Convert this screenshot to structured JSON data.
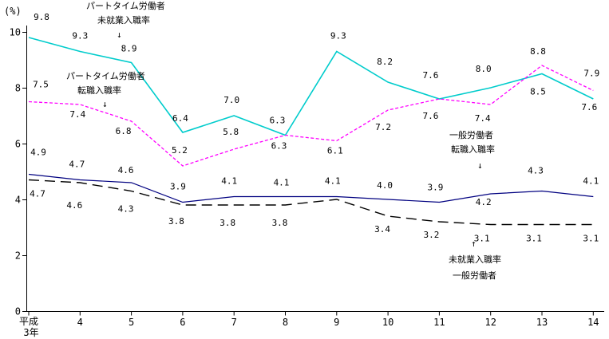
{
  "chart_data": {
    "type": "line",
    "title": "",
    "unit_label": "(%)",
    "ylim": [
      0,
      10
    ],
    "y_ticks": [
      0,
      2,
      4,
      6,
      8,
      10
    ],
    "grid": false,
    "legend_position": "inline-annotations",
    "x_tick_labels": [
      "平成3年",
      "4",
      "5",
      "6",
      "7",
      "8",
      "9",
      "10",
      "11",
      "12",
      "13",
      "14"
    ],
    "series": [
      {
        "name": "パートタイム労働者 未就業入職率",
        "color": "#00CCCC",
        "line_style": "solid",
        "values": [
          9.8,
          9.3,
          8.9,
          6.4,
          7.0,
          6.3,
          9.3,
          8.2,
          7.6,
          8.0,
          8.5,
          7.6
        ],
        "point_labels": [
          "9.8",
          "9.3",
          "8.9",
          "6.4",
          "7.0",
          "6.3",
          "9.3",
          "8.2",
          "7.6",
          "8.0",
          "8.5",
          "7.6"
        ]
      },
      {
        "name": "パートタイム労働者 転職入職率",
        "color": "#FF00FF",
        "line_style": "dashed",
        "values": [
          7.5,
          7.4,
          6.8,
          5.2,
          5.8,
          6.3,
          6.1,
          7.2,
          7.6,
          7.4,
          8.8,
          7.9
        ],
        "point_labels": [
          "7.5",
          "7.4",
          "6.8",
          "5.2",
          "5.8",
          "6.3",
          "6.1",
          "7.2",
          "7.6",
          "7.4",
          "8.8",
          "7.9"
        ]
      },
      {
        "name": "一般労働者 転職入職率",
        "color": "#000080",
        "line_style": "solid",
        "values": [
          4.9,
          4.7,
          4.6,
          3.9,
          4.1,
          4.1,
          4.1,
          4.0,
          3.9,
          4.2,
          4.3,
          4.1
        ],
        "point_labels": [
          "4.9",
          "4.7",
          "4.6",
          "3.9",
          "4.1",
          "4.1",
          "4.1",
          "4.0",
          "3.9",
          "4.2",
          "4.3",
          "4.1"
        ]
      },
      {
        "name": "一般労働者 未就業入職率",
        "color": "#000000",
        "line_style": "longdash",
        "values": [
          4.7,
          4.6,
          4.3,
          3.8,
          3.8,
          3.8,
          4.0,
          3.4,
          3.2,
          3.1,
          3.1,
          3.1
        ],
        "point_labels": [
          "4.7",
          "4.6",
          "4.3",
          "3.8",
          "3.8",
          "3.8",
          "",
          "3.4",
          "3.2",
          "3.1",
          "3.1",
          "3.1"
        ]
      }
    ],
    "annotations": [
      {
        "lines": [
          "パートタイム労働者",
          "未就業入職率",
          "↓"
        ]
      },
      {
        "lines": [
          "パートタイム労働者",
          "転職入職率",
          "↓"
        ]
      },
      {
        "lines": [
          "一般労働者",
          "転職入職率",
          "↓"
        ]
      },
      {
        "lines": [
          "↑",
          "未就業入職率",
          "一般労働者"
        ]
      }
    ]
  }
}
